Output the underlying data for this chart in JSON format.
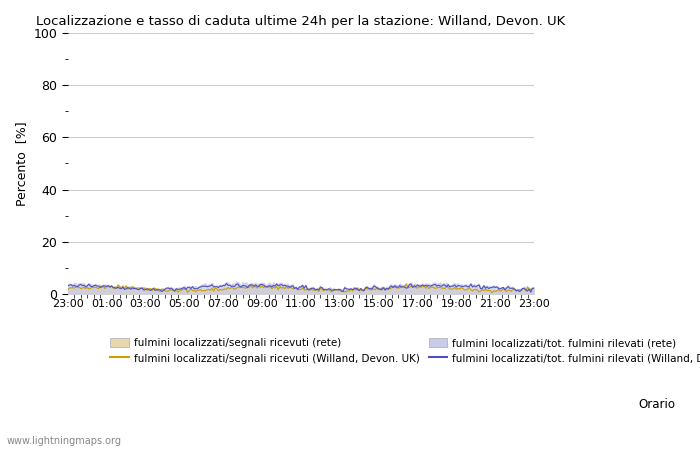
{
  "title": "Localizzazione e tasso di caduta ultime 24h per la stazione: Willand, Devon. UK",
  "ylabel": "Percento  [%]",
  "xlabel_right": "Orario",
  "watermark": "www.lightningmaps.org",
  "ylim": [
    0,
    100
  ],
  "yticks": [
    0,
    20,
    40,
    60,
    80,
    100
  ],
  "yticks_minor": [
    10,
    30,
    50,
    70,
    90
  ],
  "x_labels": [
    "23:00",
    "01:00",
    "03:00",
    "05:00",
    "07:00",
    "09:00",
    "11:00",
    "13:00",
    "15:00",
    "17:00",
    "19:00",
    "21:00",
    "23:00"
  ],
  "n_points": 289,
  "bg_color": "#ffffff",
  "plot_bg_color": "#ffffff",
  "grid_color": "#cccccc",
  "fill_rete_segnali_color": "#e8d8b0",
  "fill_rete_fulmini_color": "#c8cce8",
  "line_station_segnali_color": "#c8a000",
  "line_station_fulmini_color": "#5050c0",
  "legend_labels": [
    "fulmini localizzati/segnali ricevuti (rete)",
    "fulmini localizzati/segnali ricevuti (Willand, Devon. UK)",
    "fulmini localizzati/tot. fulmini rilevati (rete)",
    "fulmini localizzati/tot. fulmini rilevati (Willand, Devon. UK)"
  ]
}
